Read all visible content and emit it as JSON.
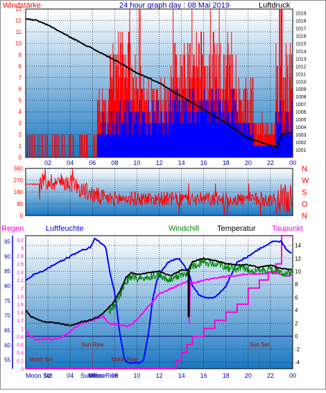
{
  "header": {
    "left_label": "Windstärke",
    "title": "24 hour graph day : 08 Mai 2019",
    "right_label": "Luftdruck"
  },
  "colors": {
    "panel_top": "#ffffff",
    "panel_bottom": "#1a78c2",
    "gust": "#ff0000",
    "wind": "#0000ff",
    "pressure": "#000000",
    "direction": "#ff0000",
    "rain": "#ff00cc",
    "humidity": "#0000ff",
    "windchill": "#008800",
    "temperature": "#000000",
    "dewpoint": "#ff00ff",
    "axis_text_red": "#ff0000",
    "axis_text_blue": "#0000aa"
  },
  "chart_data": [
    {
      "type": "bar",
      "name": "wind-pressure",
      "left_axis": {
        "ticks": [
          "0",
          "1",
          "2",
          "3",
          "4",
          "5",
          "6",
          "7",
          "8",
          "9",
          "10",
          "11",
          "12",
          "13"
        ],
        "ylim": [
          0,
          13
        ]
      },
      "right_axis": {
        "ticks": [
          "1001",
          "1002",
          "1003",
          "1004",
          "1005",
          "1006",
          "1007",
          "1008",
          "1009",
          "1010",
          "1011",
          "1012",
          "1013",
          "1014",
          "1015",
          "1016",
          "1017",
          "1018",
          "1019"
        ],
        "ylim": [
          1000,
          1019.5
        ]
      },
      "x_ticks": [
        "02",
        "04",
        "06",
        "08",
        "10",
        "12",
        "14",
        "16",
        "18",
        "20",
        "22",
        "00"
      ],
      "pressure_profile": {
        "hours": [
          0,
          1,
          2,
          4,
          6,
          8,
          10,
          12,
          14,
          16,
          18,
          20,
          22,
          22.6,
          23,
          24
        ],
        "hpa": [
          1018.2,
          1018.0,
          1017.4,
          1015.8,
          1014.3,
          1012.8,
          1011.1,
          1009.8,
          1008.0,
          1006.3,
          1004.5,
          1002.5,
          1001.6,
          1001.3,
          1003.0,
          1003.3
        ]
      }
    },
    {
      "type": "line",
      "name": "wind-direction",
      "left_axis": {
        "ticks": [
          "0",
          "90",
          "180",
          "270",
          "360"
        ],
        "ylim": [
          0,
          360
        ]
      },
      "right_axis": {
        "ticks": [
          "N",
          "W",
          "S",
          "O",
          "N"
        ]
      },
      "direction_profile": {
        "hours": [
          0,
          1.2,
          1.5,
          4,
          5,
          6,
          7,
          24
        ],
        "degrees": [
          240,
          240,
          260,
          255,
          200,
          160,
          130,
          120
        ]
      }
    },
    {
      "type": "line",
      "name": "rain-humidity-temperature",
      "header_labels": {
        "rain": "Regen",
        "humidity": "Luftfeuchte",
        "windchill": "Windchill",
        "temperature": "Temperatur",
        "dewpoint": "Taupunkt"
      },
      "humidity_axis": {
        "ticks": [
          "55",
          "60",
          "65",
          "70",
          "75",
          "80",
          "85",
          "90",
          "95"
        ],
        "ylim": [
          52,
          97
        ]
      },
      "rain_axis": {
        "ticks": [
          "0",
          "0.2",
          "0.4",
          "0.6",
          "0.8",
          "1",
          "1.2",
          "1.4",
          "1.6",
          "1.8",
          "2",
          "2.2",
          "2.4",
          "2.6",
          "2.8",
          "3",
          "3.2"
        ],
        "ylim": [
          0,
          3.3
        ]
      },
      "temperature_axis": {
        "ticks": [
          "-4",
          "-2",
          "0",
          "2",
          "4",
          "6",
          "8",
          "10",
          "12",
          "14"
        ],
        "ylim": [
          -5,
          15.5
        ]
      },
      "x_ticks": [
        "02",
        "04",
        "06",
        "08",
        "10",
        "12",
        "14",
        "16",
        "18",
        "20",
        "22",
        "00"
      ],
      "annotations": [
        {
          "text": "Sun Rise",
          "hour": 6
        },
        {
          "text": "Sun Set",
          "hour": 21
        },
        {
          "text": "Moon Set",
          "hour": 0.3
        },
        {
          "text": "Moon Rise",
          "hour": 8.9
        }
      ],
      "bottom_labels": [
        "Moon Set",
        "Sun Rise",
        "Moon Rise"
      ],
      "humidity_profile": {
        "hours": [
          0,
          0.8,
          1.5,
          3,
          4,
          5,
          5.8,
          6.2,
          6.6,
          7.2,
          7.6,
          8,
          8.5,
          8.9,
          9.2,
          9.6,
          10,
          10.2,
          10.6,
          11,
          11.4,
          11.8,
          12.2,
          12.8,
          13.4,
          13.8,
          14.6,
          15,
          15.6,
          16.2,
          17,
          18,
          19,
          20,
          21.2,
          22.2,
          22.6,
          23,
          23.5,
          24
        ],
        "percent": [
          82,
          84,
          85,
          88,
          90,
          92,
          93,
          96,
          95,
          93,
          84,
          78,
          63,
          55,
          54,
          54,
          54,
          54,
          55,
          63,
          75,
          82,
          85,
          88,
          89,
          89,
          85,
          80,
          77,
          76,
          76,
          80,
          88,
          90,
          93,
          95,
          95,
          95,
          92,
          91
        ]
      },
      "temperature_profile": {
        "hours": [
          0,
          0.5,
          1.5,
          3,
          4,
          5,
          6,
          6.5,
          7,
          7.8,
          8.5,
          9,
          9.5,
          10,
          11,
          12,
          13,
          14,
          14.6,
          15,
          16,
          17,
          18,
          19,
          20,
          21,
          22,
          23,
          24
        ],
        "celsius": [
          4,
          3,
          2.3,
          2,
          1.6,
          2.2,
          2.6,
          3,
          3.6,
          5,
          7,
          9,
          9.8,
          9.5,
          9.8,
          10,
          9.3,
          10.2,
          10.2,
          11.5,
          12,
          11.7,
          11.2,
          11,
          11,
          10.6,
          11,
          10.4,
          10.3
        ]
      },
      "dewpoint_profile": {
        "hours": [
          0,
          0.4,
          1,
          2.5,
          3.2,
          4.2,
          5,
          6,
          7,
          7.5,
          8.2,
          9.2,
          10,
          11,
          12,
          13,
          14,
          14.6,
          15,
          16,
          17,
          18,
          19,
          20,
          21,
          22,
          23,
          24
        ],
        "celsius": [
          1,
          0,
          -0.5,
          -0.4,
          -0.2,
          1,
          2,
          2.5,
          3,
          2,
          1.8,
          1.5,
          2.5,
          4.5,
          6.5,
          7.3,
          8,
          8.5,
          8.2,
          8.6,
          9,
          9.2,
          9.4,
          9.6,
          9.6,
          9.8,
          9.5,
          9.3
        ]
      },
      "rain_profile": {
        "hours": [
          0,
          13,
          13.5,
          14,
          14.5,
          15,
          16,
          17,
          18,
          19,
          20,
          21,
          21.8,
          22.5,
          23,
          23.6,
          24
        ],
        "mm": [
          0,
          0,
          0.2,
          0.4,
          0.6,
          0.8,
          1.0,
          1.2,
          1.4,
          1.6,
          2.0,
          2.2,
          2.4,
          2.6,
          3.3,
          3.3,
          3.3
        ]
      }
    }
  ]
}
